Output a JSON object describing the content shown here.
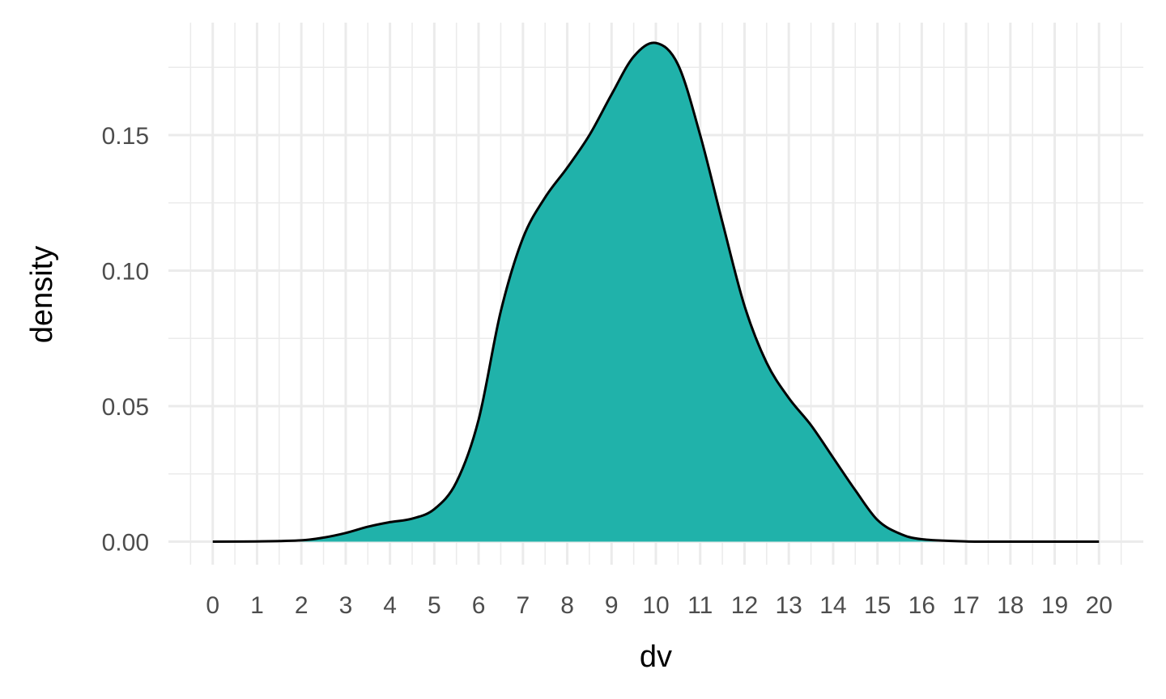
{
  "chart_data": {
    "type": "area",
    "title": "",
    "xlabel": "dv",
    "ylabel": "density",
    "xlim": [
      -1,
      21
    ],
    "ylim": [
      -0.0085,
      0.1915
    ],
    "x_ticks": [
      0,
      1,
      2,
      3,
      4,
      5,
      6,
      7,
      8,
      9,
      10,
      11,
      12,
      13,
      14,
      15,
      16,
      17,
      18,
      19,
      20
    ],
    "x_tick_labels": [
      "0",
      "1",
      "2",
      "3",
      "4",
      "5",
      "6",
      "7",
      "8",
      "9",
      "10",
      "11",
      "12",
      "13",
      "14",
      "15",
      "16",
      "17",
      "18",
      "19",
      "20"
    ],
    "y_ticks": [
      0,
      0.05,
      0.1,
      0.15
    ],
    "y_tick_labels": [
      "0.00",
      "0.05",
      "0.10",
      "0.15"
    ],
    "grid": true,
    "legend": "none",
    "fill_color": "#20b2aa",
    "line_color": "#000000",
    "grid_color": "#ebebeb",
    "series": [
      {
        "x": [
          0,
          1,
          2,
          2.5,
          3,
          3.5,
          4,
          4.5,
          5,
          5.5,
          6,
          6.5,
          7,
          7.5,
          8,
          8.5,
          9,
          9.5,
          10,
          10.5,
          11,
          11.5,
          12,
          12.5,
          13,
          13.5,
          14,
          14.5,
          15,
          15.5,
          16,
          17,
          18,
          19,
          20
        ],
        "y": [
          0,
          0.0001,
          0.0005,
          0.0015,
          0.0032,
          0.0055,
          0.0072,
          0.0085,
          0.012,
          0.022,
          0.045,
          0.085,
          0.112,
          0.127,
          0.138,
          0.15,
          0.165,
          0.179,
          0.184,
          0.176,
          0.15,
          0.118,
          0.087,
          0.066,
          0.053,
          0.043,
          0.031,
          0.019,
          0.008,
          0.003,
          0.0009,
          0.0001,
          0,
          0,
          0
        ]
      }
    ]
  }
}
